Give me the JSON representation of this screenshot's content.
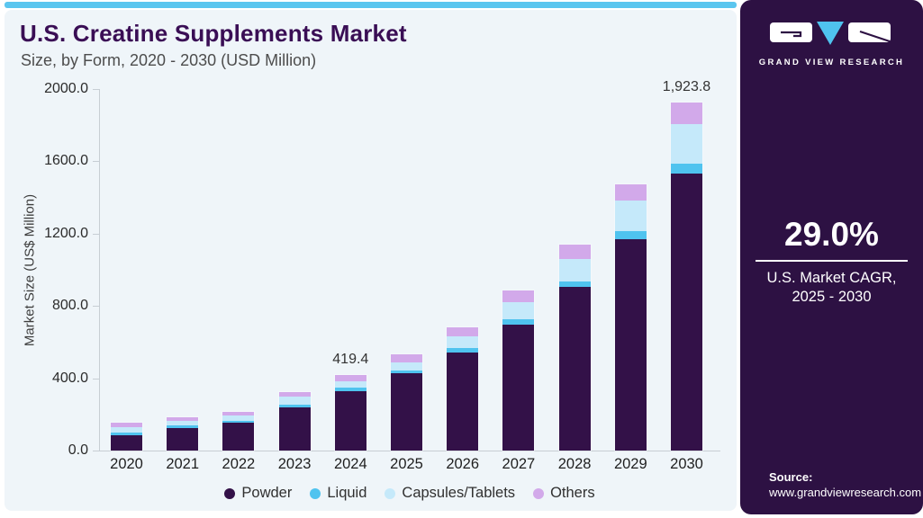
{
  "header": {
    "title": "U.S. Creatine Supplements Market",
    "subtitle": "Size, by Form, 2020 - 2030 (USD Million)"
  },
  "chart_data": {
    "type": "bar",
    "stacked": true,
    "title": "U.S. Creatine Supplements Market Size, by Form, 2020 - 2030 (USD Million)",
    "categories": [
      "2020",
      "2021",
      "2022",
      "2023",
      "2024",
      "2025",
      "2026",
      "2027",
      "2028",
      "2029",
      "2030"
    ],
    "series": [
      {
        "name": "Powder",
        "color": "#331148",
        "values": [
          85,
          126,
          153,
          241,
          329.4,
          428,
          540,
          697,
          905,
          1170,
          1534
        ]
      },
      {
        "name": "Liquid",
        "color": "#4FC3EF",
        "values": [
          16,
          13,
          13,
          13,
          17,
          17,
          27,
          29,
          30,
          46,
          51
        ]
      },
      {
        "name": "Capsules/Tablets",
        "color": "#C5E9FA",
        "values": [
          28,
          24,
          27,
          45,
          39,
          45,
          67,
          96,
          125,
          167,
          220
        ]
      },
      {
        "name": "Others",
        "color": "#D2A9EA",
        "values": [
          24,
          19,
          20,
          22,
          34,
          44,
          50,
          64,
          78,
          89,
          118.8
        ]
      }
    ],
    "totals_labeled": [
      {
        "category": "2024",
        "text": "419.4"
      },
      {
        "category": "2030",
        "text": "1,923.8"
      }
    ],
    "xlabel": "",
    "ylabel": "Market Size (US$ Million)",
    "ylim": [
      0,
      2000
    ],
    "yticks": [
      "0.0",
      "400.0",
      "800.0",
      "1200.0",
      "1600.0",
      "2000.0"
    ],
    "grid": false,
    "legend_position": "bottom"
  },
  "sidebar": {
    "brand": "GRAND VIEW RESEARCH",
    "cagr_value": "29.0%",
    "cagr_caption_line1": "U.S. Market CAGR,",
    "cagr_caption_line2": "2025 - 2030",
    "source_label": "Source:",
    "source_url": "www.grandviewresearch.com"
  },
  "colors": {
    "topbar": "#5BC6EF",
    "card_bg": "#EFF5F9",
    "sidebar_bg": "#2D1143",
    "title": "#3A0E55",
    "axis_line": "#C7CED4",
    "logo_triangle": "#4FC3EF"
  }
}
